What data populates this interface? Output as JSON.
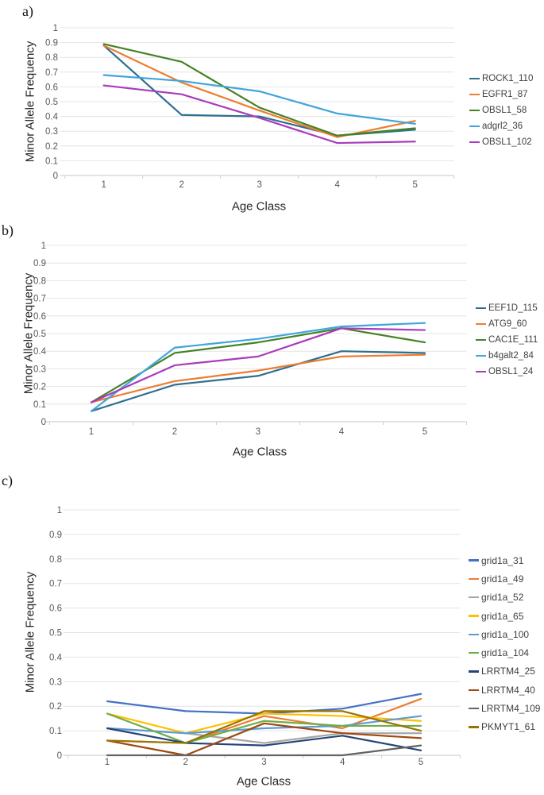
{
  "figure": {
    "panel_a_label": "a)",
    "panel_b_label": "b)",
    "panel_c_label": "c)"
  },
  "chart_data": [
    {
      "type": "line",
      "title": "",
      "xlabel": "Age Class",
      "ylabel": "Minor Allele Frequency",
      "categories": [
        "1",
        "2",
        "3",
        "4",
        "5"
      ],
      "ylim": [
        0,
        1
      ],
      "ytick_labels": [
        "0",
        "0.1",
        "0.2",
        "0.3",
        "0.4",
        "0.5",
        "0.6",
        "0.7",
        "0.8",
        "0.9",
        "1"
      ],
      "grid": "horizontal",
      "legend_position": "right",
      "series": [
        {
          "name": "ROCK1_110",
          "color": "#2E6F8F",
          "values": [
            0.88,
            0.41,
            0.4,
            0.27,
            0.31
          ]
        },
        {
          "name": "EGFR1_87",
          "color": "#ED7D31",
          "values": [
            0.88,
            0.63,
            0.44,
            0.26,
            0.37
          ]
        },
        {
          "name": "OBSL1_58",
          "color": "#458226",
          "values": [
            0.89,
            0.77,
            0.46,
            0.27,
            0.32
          ]
        },
        {
          "name": "adgrl2_36",
          "color": "#41A5DC",
          "values": [
            0.68,
            0.64,
            0.57,
            0.42,
            0.35
          ]
        },
        {
          "name": "OBSL1_102",
          "color": "#A93BBD",
          "values": [
            0.61,
            0.55,
            0.39,
            0.22,
            0.23
          ]
        }
      ]
    },
    {
      "type": "line",
      "title": "",
      "xlabel": "Age Class",
      "ylabel": "Minor Allele Frequency",
      "categories": [
        "1",
        "2",
        "3",
        "4",
        "5"
      ],
      "ylim": [
        0,
        1
      ],
      "ytick_labels": [
        "0",
        "0.1",
        "0.2",
        "0.3",
        "0.4",
        "0.5",
        "0.6",
        "0.7",
        "0.8",
        "0.9",
        "1"
      ],
      "grid": "horizontal",
      "legend_position": "right",
      "series": [
        {
          "name": "EEF1D_115",
          "color": "#2E6F8F",
          "values": [
            0.06,
            0.21,
            0.26,
            0.4,
            0.39
          ]
        },
        {
          "name": "ATG9_60",
          "color": "#ED7D31",
          "values": [
            0.11,
            0.23,
            0.29,
            0.37,
            0.38
          ]
        },
        {
          "name": "CAC1E_111",
          "color": "#458226",
          "values": [
            0.11,
            0.39,
            0.45,
            0.53,
            0.45
          ]
        },
        {
          "name": "b4galt2_84",
          "color": "#41A5DC",
          "values": [
            0.06,
            0.42,
            0.47,
            0.54,
            0.56
          ]
        },
        {
          "name": "OBSL1_24",
          "color": "#A93BBD",
          "values": [
            0.11,
            0.32,
            0.37,
            0.53,
            0.52
          ]
        }
      ]
    },
    {
      "type": "line",
      "title": "",
      "xlabel": "Age Class",
      "ylabel": "Minor Allele Frequency",
      "categories": [
        "1",
        "2",
        "3",
        "4",
        "5"
      ],
      "ylim": [
        0,
        1
      ],
      "ytick_labels": [
        "0",
        "0.1",
        "0.2",
        "0.3",
        "0.4",
        "0.5",
        "0.6",
        "0.7",
        "0.8",
        "0.9",
        "1"
      ],
      "grid": "horizontal",
      "legend_position": "right",
      "series": [
        {
          "name": "grid1a_31",
          "color": "#4472C4",
          "values": [
            0.22,
            0.18,
            0.17,
            0.19,
            0.25
          ]
        },
        {
          "name": "grid1a_49",
          "color": "#ED7D31",
          "values": [
            0.06,
            0.05,
            0.16,
            0.11,
            0.23
          ]
        },
        {
          "name": "grid1a_52",
          "color": "#A5A5A5",
          "values": [
            0.11,
            0.09,
            0.05,
            0.09,
            0.09
          ]
        },
        {
          "name": "grid1a_65",
          "color": "#FFC000",
          "values": [
            0.17,
            0.09,
            0.17,
            0.16,
            0.14
          ]
        },
        {
          "name": "grid1a_100",
          "color": "#5B9BD5",
          "values": [
            0.11,
            0.09,
            0.11,
            0.12,
            0.16
          ]
        },
        {
          "name": "grid1a_104",
          "color": "#70AD47",
          "values": [
            0.17,
            0.05,
            0.14,
            0.12,
            0.12
          ]
        },
        {
          "name": "LRRTM4_25",
          "color": "#264478",
          "values": [
            0.11,
            0.05,
            0.04,
            0.08,
            0.02
          ]
        },
        {
          "name": "LRRTM4_40",
          "color": "#9E480E",
          "values": [
            0.06,
            0.0,
            0.13,
            0.09,
            0.07
          ]
        },
        {
          "name": "LRRTM4_109",
          "color": "#636363",
          "values": [
            0.0,
            0.0,
            0.0,
            0.0,
            0.04
          ]
        },
        {
          "name": "PKMYT1_61",
          "color": "#997300",
          "values": [
            0.06,
            0.05,
            0.18,
            0.18,
            0.1
          ]
        }
      ]
    }
  ],
  "style_colors": {
    "gridline": "#E4E4E4",
    "axis_line": "#D2D2D2",
    "tick_mark": "#CFCFCF",
    "tick_label": "#595959"
  }
}
